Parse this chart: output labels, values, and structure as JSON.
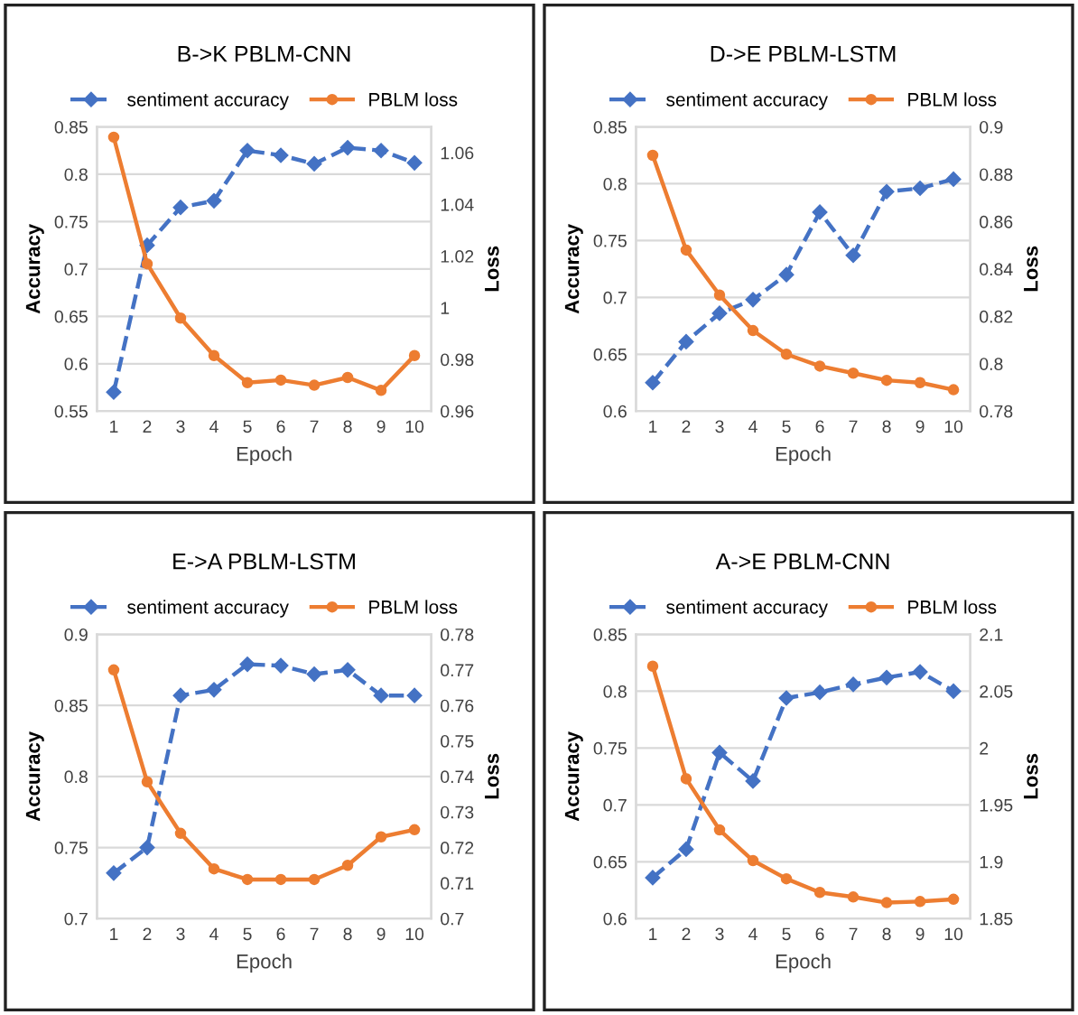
{
  "chart_data": [
    {
      "type": "line",
      "title": "B->K PBLM-CNN",
      "xlabel": "Epoch",
      "ylabel": "Accuracy",
      "y2label": "Loss",
      "categories": [
        "1",
        "2",
        "3",
        "4",
        "5",
        "6",
        "7",
        "8",
        "9",
        "10"
      ],
      "series": [
        {
          "name": "sentiment accuracy",
          "color": "#4472c4",
          "line_style": "dashed",
          "marker": "diamond",
          "values": [
            0.57,
            0.725,
            0.765,
            0.772,
            0.825,
            0.82,
            0.811,
            0.828,
            0.825,
            0.812
          ]
        },
        {
          "name": "PBLM loss",
          "color": "#ed7d31",
          "line_style": "solid",
          "marker": "circle",
          "axis": "y2",
          "values": [
            1.066,
            1.017,
            0.996,
            0.9815,
            0.971,
            0.972,
            0.97,
            0.973,
            0.968,
            0.9815
          ]
        }
      ],
      "ylim": [
        0.55,
        0.85
      ],
      "yticks": [
        0.55,
        0.6,
        0.65,
        0.7,
        0.75,
        0.8,
        0.85
      ],
      "y2lim": [
        0.96,
        1.07
      ],
      "y2ticks": [
        0.96,
        0.98,
        1,
        1.02,
        1.04,
        1.06
      ],
      "grid": "y",
      "legend": "top"
    },
    {
      "type": "line",
      "title": "D->E PBLM-LSTM",
      "xlabel": "Epoch",
      "ylabel": "Accuracy",
      "y2label": "Loss",
      "categories": [
        "1",
        "2",
        "3",
        "4",
        "5",
        "6",
        "7",
        "8",
        "9",
        "10"
      ],
      "series": [
        {
          "name": "sentiment accuracy",
          "color": "#4472c4",
          "line_style": "dashed",
          "marker": "diamond",
          "values": [
            0.625,
            0.661,
            0.686,
            0.698,
            0.72,
            0.775,
            0.737,
            0.793,
            0.796,
            0.804
          ]
        },
        {
          "name": "PBLM loss",
          "color": "#ed7d31",
          "line_style": "solid",
          "marker": "circle",
          "axis": "y2",
          "values": [
            0.888,
            0.848,
            0.829,
            0.814,
            0.804,
            0.799,
            0.796,
            0.793,
            0.792,
            0.789
          ]
        }
      ],
      "ylim": [
        0.6,
        0.85
      ],
      "yticks": [
        0.6,
        0.65,
        0.7,
        0.75,
        0.8,
        0.85
      ],
      "y2lim": [
        0.78,
        0.9
      ],
      "y2ticks": [
        0.78,
        0.8,
        0.82,
        0.84,
        0.86,
        0.88,
        0.9
      ],
      "grid": "y",
      "legend": "top"
    },
    {
      "type": "line",
      "title": "E->A PBLM-LSTM",
      "xlabel": "Epoch",
      "ylabel": "Accuracy",
      "y2label": "Loss",
      "categories": [
        "1",
        "2",
        "3",
        "4",
        "5",
        "6",
        "7",
        "8",
        "9",
        "10"
      ],
      "series": [
        {
          "name": "sentiment accuracy",
          "color": "#4472c4",
          "line_style": "dashed",
          "marker": "diamond",
          "values": [
            0.732,
            0.75,
            0.857,
            0.861,
            0.879,
            0.878,
            0.872,
            0.875,
            0.857,
            0.857
          ]
        },
        {
          "name": "PBLM loss",
          "color": "#ed7d31",
          "line_style": "solid",
          "marker": "circle",
          "axis": "y2",
          "values": [
            0.77,
            0.7385,
            0.724,
            0.714,
            0.711,
            0.711,
            0.711,
            0.715,
            0.723,
            0.725
          ]
        }
      ],
      "ylim": [
        0.7,
        0.9
      ],
      "yticks": [
        0.7,
        0.75,
        0.8,
        0.85,
        0.9
      ],
      "y2lim": [
        0.7,
        0.78
      ],
      "y2ticks": [
        0.7,
        0.71,
        0.72,
        0.73,
        0.74,
        0.75,
        0.76,
        0.77,
        0.78
      ],
      "grid": "y",
      "legend": "top"
    },
    {
      "type": "line",
      "title": "A->E PBLM-CNN",
      "xlabel": "Epoch",
      "ylabel": "Accuracy",
      "y2label": "Loss",
      "categories": [
        "1",
        "2",
        "3",
        "4",
        "5",
        "6",
        "7",
        "8",
        "9",
        "10"
      ],
      "series": [
        {
          "name": "sentiment accuracy",
          "color": "#4472c4",
          "line_style": "dashed",
          "marker": "diamond",
          "values": [
            0.636,
            0.661,
            0.746,
            0.721,
            0.794,
            0.799,
            0.806,
            0.812,
            0.817,
            0.8
          ]
        },
        {
          "name": "PBLM loss",
          "color": "#ed7d31",
          "line_style": "solid",
          "marker": "circle",
          "axis": "y2",
          "values": [
            2.072,
            1.973,
            1.928,
            1.901,
            1.885,
            1.873,
            1.869,
            1.864,
            1.865,
            1.867
          ]
        }
      ],
      "ylim": [
        0.6,
        0.85
      ],
      "yticks": [
        0.6,
        0.65,
        0.7,
        0.75,
        0.8,
        0.85
      ],
      "y2lim": [
        1.85,
        2.1
      ],
      "y2ticks": [
        1.85,
        1.9,
        1.95,
        2,
        2.05,
        2.1
      ],
      "grid": "y",
      "legend": "top"
    }
  ]
}
